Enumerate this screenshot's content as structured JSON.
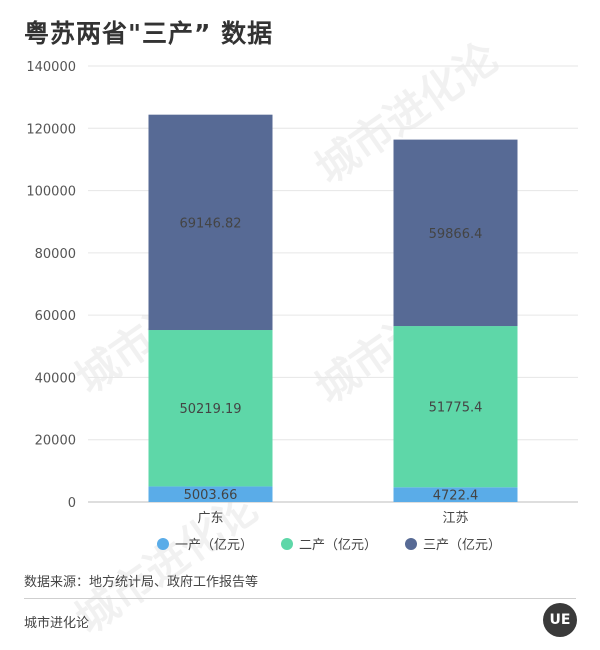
{
  "title": "粤苏两省\"三产”  数据",
  "source": "数据来源：地方统计局、政府工作报告等",
  "footer": "城市进化论",
  "logo": "UE",
  "watermark": "城市进化论",
  "colors": {
    "primary": "#5aace8",
    "secondary": "#5ed7a8",
    "tertiary": "#576a95"
  },
  "chart_data": {
    "type": "bar",
    "stacked": true,
    "categories": [
      "广东",
      "江苏"
    ],
    "series": [
      {
        "name": "一产（亿元）",
        "values": [
          5003.66,
          4722.4
        ],
        "labels": [
          "5003.66",
          "4722.4"
        ],
        "color": "#5aace8"
      },
      {
        "name": "二产（亿元）",
        "values": [
          50219.19,
          51775.4
        ],
        "labels": [
          "50219.19",
          "51775.4"
        ],
        "color": "#5ed7a8"
      },
      {
        "name": "三产（亿元）",
        "values": [
          69146.82,
          59866.4
        ],
        "labels": [
          "69146.82",
          "59866.4"
        ],
        "color": "#576a95"
      }
    ],
    "ylim": [
      0,
      140000
    ],
    "yticks": [
      "0",
      "20000",
      "40000",
      "60000",
      "80000",
      "100000",
      "120000",
      "140000"
    ],
    "grid": true,
    "legend": "bottom"
  }
}
